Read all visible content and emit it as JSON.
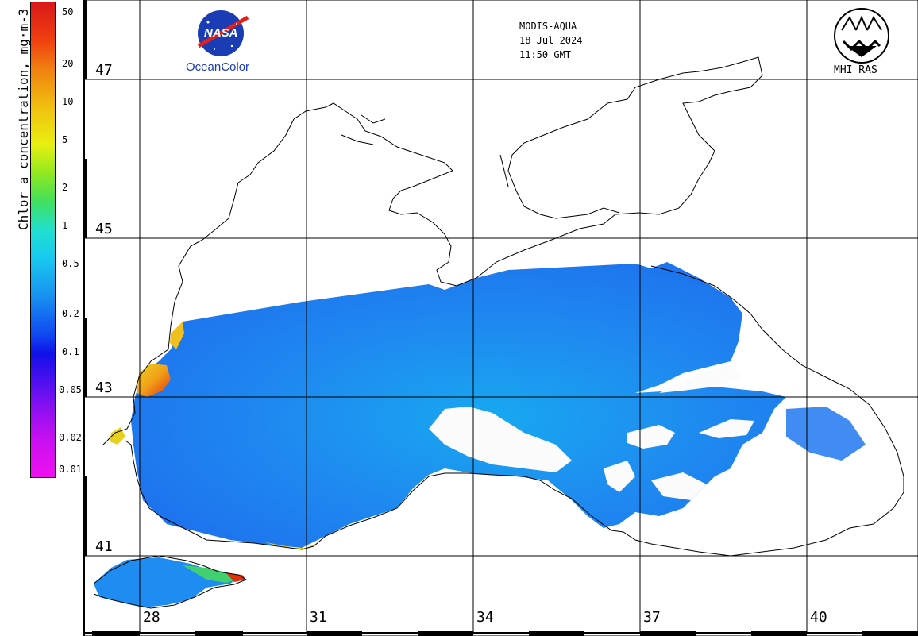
{
  "colorbar": {
    "label": "Chlor_a concentration, mg·m-3",
    "ticks": [
      "50",
      "20",
      "10",
      "5",
      "2",
      "1",
      "0.5",
      "0.2",
      "0.1",
      "0.05",
      "0.02",
      "0.01"
    ]
  },
  "header": {
    "sensor": "MODIS-AQUA",
    "date": "18 Jul 2024",
    "time": "11:50 GMT"
  },
  "logos": {
    "nasa_wordmark": "NASA",
    "nasa_caption": "OceanColor",
    "mhi_caption": "MHI RAS"
  },
  "grid": {
    "latitudes": [
      "47",
      "45",
      "43",
      "41"
    ],
    "longitudes": [
      "28",
      "31",
      "34",
      "37",
      "40"
    ]
  },
  "colors": {
    "coast": "#000000",
    "grid": "#000000",
    "sea_low": "#1e78f0",
    "sea_mid": "#1496f0",
    "sea_high": "#10d0e8",
    "bloom": "#f0d020",
    "bloom_peak": "#e03010",
    "nasa_blue": "#1a3cb4"
  }
}
